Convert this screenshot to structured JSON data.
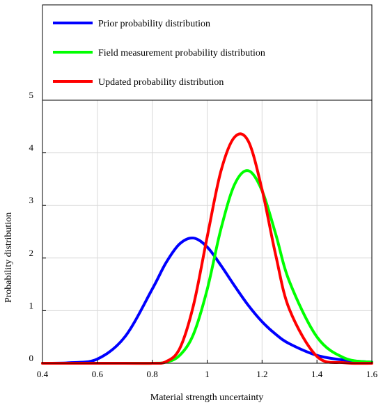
{
  "chart_data": {
    "type": "line",
    "xlabel": "Material strength uncertainty",
    "ylabel": "Probability distribution",
    "xlim": [
      0.4,
      1.6
    ],
    "ylim": [
      0,
      5
    ],
    "xticks": [
      "0.4",
      "0.6",
      "0.8",
      "1",
      "1.2",
      "1.4",
      "1.6"
    ],
    "yticks": [
      "0",
      "1",
      "2",
      "3",
      "4",
      "5"
    ],
    "grid": true,
    "legend_position": "top (above plot area)",
    "x": [
      0.4,
      0.5,
      0.6,
      0.7,
      0.8,
      0.85,
      0.9,
      0.95,
      1.0,
      1.05,
      1.1,
      1.15,
      1.2,
      1.25,
      1.3,
      1.4,
      1.5,
      1.6
    ],
    "series": [
      {
        "name": "Prior probability distribution",
        "color": "#0000ff",
        "values": [
          0.0,
          0.01,
          0.08,
          0.5,
          1.41,
          1.91,
          2.27,
          2.38,
          2.21,
          1.86,
          1.47,
          1.1,
          0.79,
          0.55,
          0.37,
          0.15,
          0.06,
          0.02
        ]
      },
      {
        "name": "Field measurement probability distribution",
        "color": "#00ff00",
        "values": [
          0.0,
          0.0,
          0.0,
          0.0,
          0.0,
          0.02,
          0.15,
          0.55,
          1.4,
          2.55,
          3.4,
          3.66,
          3.28,
          2.45,
          1.55,
          0.5,
          0.1,
          0.02
        ]
      },
      {
        "name": "Updated probability distribution",
        "color": "#ff0000",
        "values": [
          0.0,
          0.0,
          0.0,
          0.0,
          0.0,
          0.03,
          0.28,
          1.1,
          2.4,
          3.65,
          4.3,
          4.22,
          3.3,
          2.05,
          1.02,
          0.13,
          0.01,
          0.0
        ]
      }
    ]
  }
}
